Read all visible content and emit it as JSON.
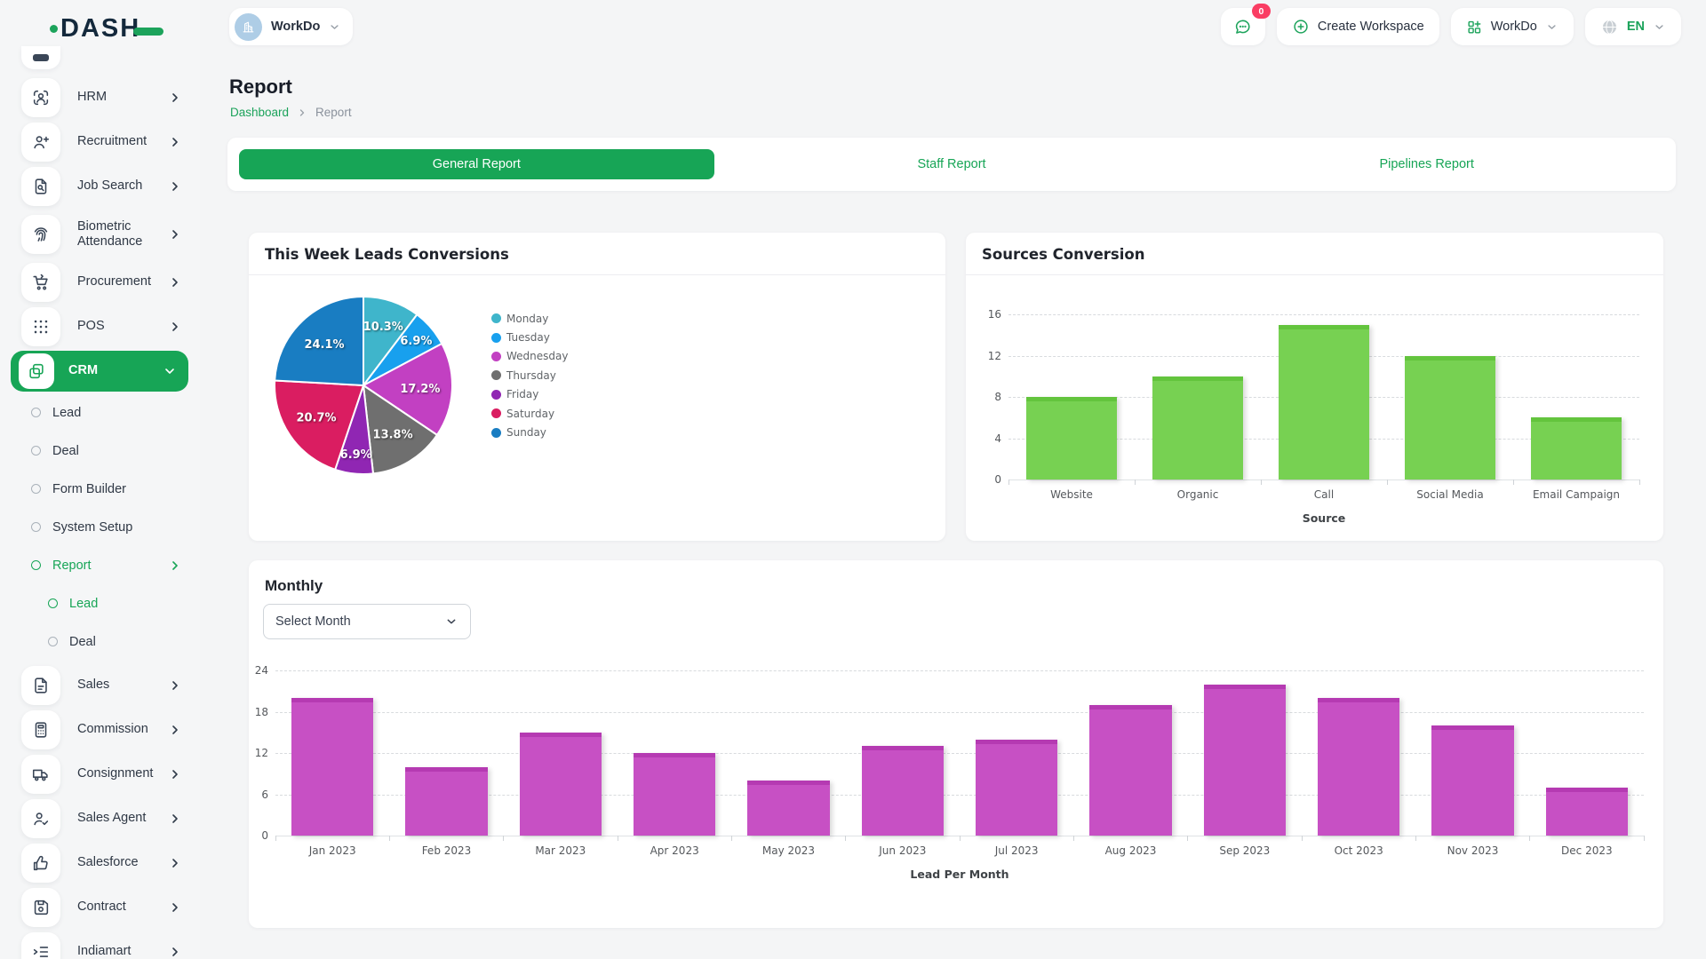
{
  "header": {
    "logo_text": "DASH",
    "workspace_switcher": {
      "label": "WorkDo"
    },
    "messages_badge": "0",
    "create_workspace_label": "Create Workspace",
    "workspace_menu_label": "WorkDo",
    "language": "EN"
  },
  "page": {
    "title": "Report",
    "breadcrumb": {
      "home": "Dashboard",
      "current": "Report"
    }
  },
  "tabs": [
    {
      "label": "General Report",
      "active": true
    },
    {
      "label": "Staff Report",
      "active": false
    },
    {
      "label": "Pipelines Report",
      "active": false
    }
  ],
  "cards": {
    "leads": {
      "title": "This Week Leads Conversions"
    },
    "sources": {
      "title": "Sources Conversion"
    },
    "monthly": {
      "title": "Monthly",
      "select_placeholder": "Select Month"
    }
  },
  "sidebar": {
    "items": [
      {
        "label": "HRM",
        "icon": "hrm-icon",
        "chevron": "right",
        "level": 0
      },
      {
        "label": "Recruitment",
        "icon": "recruitment-icon",
        "chevron": "right",
        "level": 0
      },
      {
        "label": "Job Search",
        "icon": "job-search-icon",
        "chevron": "right",
        "level": 0
      },
      {
        "label": "Biometric Attendance",
        "icon": "biometric-icon",
        "chevron": "right",
        "level": 0,
        "tall": true
      },
      {
        "label": "Procurement",
        "icon": "procurement-icon",
        "chevron": "right",
        "level": 0
      },
      {
        "label": "POS",
        "icon": "pos-icon",
        "chevron": "right",
        "level": 0
      },
      {
        "label": "CRM",
        "icon": "crm-icon",
        "chevron": "down",
        "level": 0,
        "active": true
      },
      {
        "label": "Lead",
        "level": 1
      },
      {
        "label": "Deal",
        "level": 1
      },
      {
        "label": "Form Builder",
        "level": 1
      },
      {
        "label": "System Setup",
        "level": 1
      },
      {
        "label": "Report",
        "level": 1,
        "active": true,
        "chevron": "right"
      },
      {
        "label": "Lead",
        "level": 2,
        "active": true
      },
      {
        "label": "Deal",
        "level": 2
      },
      {
        "label": "Sales",
        "icon": "sales-icon",
        "chevron": "right",
        "level": 0,
        "gap": true
      },
      {
        "label": "Commission",
        "icon": "commission-icon",
        "chevron": "right",
        "level": 0
      },
      {
        "label": "Consignment",
        "icon": "consignment-icon",
        "chevron": "right",
        "level": 0
      },
      {
        "label": "Sales Agent",
        "icon": "sales-agent-icon",
        "chevron": "right",
        "level": 0
      },
      {
        "label": "Salesforce",
        "icon": "salesforce-icon",
        "chevron": "right",
        "level": 0
      },
      {
        "label": "Contract",
        "icon": "contract-icon",
        "chevron": "right",
        "level": 0
      },
      {
        "label": "Indiamart",
        "icon": "indiamart-icon",
        "chevron": "right",
        "level": 0
      }
    ]
  },
  "icons": {
    "hrm-icon": "user-scan",
    "recruitment-icon": "user-plus",
    "job-search-icon": "file-search",
    "biometric-icon": "fingerprint",
    "procurement-icon": "shopping-cart",
    "pos-icon": "grid-dots",
    "crm-icon": "overlapping-squares",
    "sales-icon": "file-lines",
    "commission-icon": "calculator",
    "consignment-icon": "truck",
    "sales-agent-icon": "user-check",
    "salesforce-icon": "thumbs-up",
    "contract-icon": "save-disk",
    "indiamart-icon": "list-arrow",
    "message-icon": "chat-bubble",
    "building-icon": "building",
    "plus-circle-icon": "plus-circle",
    "grid-plus-icon": "grid-plus",
    "globe-icon": "globe",
    "chevron-down-icon": "chevron-down",
    "chevron-right-icon": "chevron-right"
  },
  "colors": {
    "primary_green": "#17a556",
    "link_green": "#1ca35b",
    "badge_red": "#fa3d63",
    "logo_navy": "#14293c"
  },
  "chart_data": [
    {
      "type": "pie",
      "title": "This Week Leads Conversions",
      "labels": [
        "Monday",
        "Tuesday",
        "Wednesday",
        "Thursday",
        "Friday",
        "Saturday",
        "Sunday"
      ],
      "values": [
        10.3,
        6.9,
        17.2,
        13.8,
        6.9,
        20.7,
        24.1
      ],
      "unit": "%",
      "colors": [
        "#3FB5CB",
        "#18A0EE",
        "#C240C2",
        "#6F6F6F",
        "#9026B3",
        "#DA1D61",
        "#197DC2"
      ],
      "legend_position": "right",
      "label_format": "percent"
    },
    {
      "type": "bar",
      "title": "Sources Conversion",
      "categories": [
        "Website",
        "Organic",
        "Call",
        "Social Media",
        "Email Campaign"
      ],
      "values": [
        8,
        10,
        15,
        12,
        6
      ],
      "xlabel": "Source",
      "ylabel": "",
      "ylim": [
        0,
        16
      ],
      "yticks": [
        0,
        4,
        8,
        12,
        16
      ],
      "color": "#77D152",
      "cap_color": "#63C43D",
      "grid": "dashed"
    },
    {
      "type": "bar",
      "title": "Monthly",
      "categories": [
        "Jan 2023",
        "Feb 2023",
        "Mar 2023",
        "Apr 2023",
        "May 2023",
        "Jun 2023",
        "Jul 2023",
        "Aug 2023",
        "Sep 2023",
        "Oct 2023",
        "Nov 2023",
        "Dec 2023"
      ],
      "values": [
        20,
        10,
        15,
        12,
        8,
        13,
        14,
        19,
        22,
        20,
        16,
        7
      ],
      "xlabel": "Lead Per Month",
      "ylabel": "",
      "ylim": [
        0,
        24
      ],
      "yticks": [
        0,
        6,
        12,
        18,
        24
      ],
      "color": "#C750C4",
      "cap_color": "#B53AB2",
      "grid": "dashed"
    }
  ]
}
